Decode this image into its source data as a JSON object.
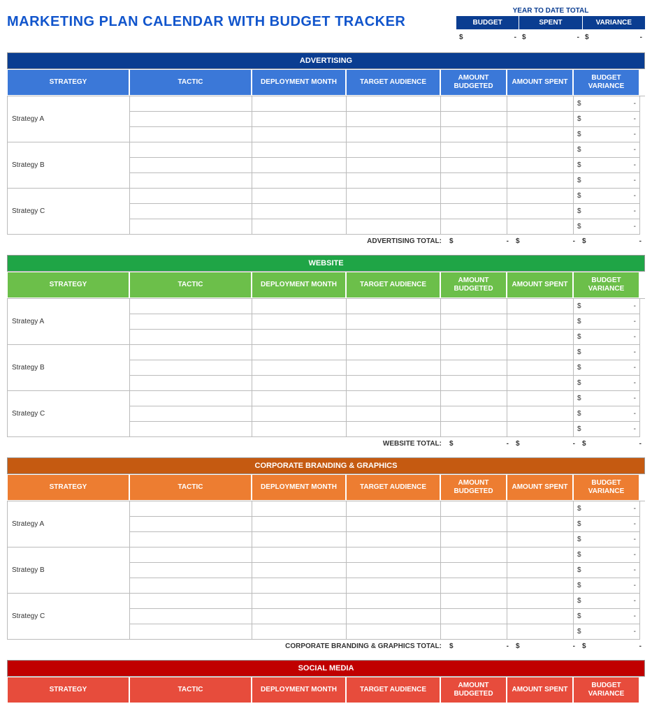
{
  "title": "MARKETING PLAN CALENDAR WITH BUDGET TRACKER",
  "title_color": "#1155cc",
  "ytd": {
    "title": "YEAR TO DATE TOTAL",
    "headers": [
      "BUDGET",
      "SPENT",
      "VARIANCE"
    ],
    "values": [
      {
        "currency": "$",
        "amount": "-"
      },
      {
        "currency": "$",
        "amount": "-"
      },
      {
        "currency": "$",
        "amount": "-"
      }
    ],
    "header_bg": "#0a3d91"
  },
  "columns": [
    "STRATEGY",
    "TACTIC",
    "DEPLOYMENT MONTH",
    "TARGET AUDIENCE",
    "AMOUNT BUDGETED",
    "AMOUNT SPENT",
    "BUDGET VARIANCE"
  ],
  "sections": [
    {
      "name": "ADVERTISING",
      "title_bg": "#0a3d91",
      "header_bg": "#3b78d8",
      "strategies": [
        "Strategy A",
        "Strategy B",
        "Strategy C"
      ],
      "rows_per_strategy": 3,
      "variance_cell": {
        "currency": "$",
        "amount": "-"
      },
      "total_label": "ADVERTISING TOTAL:",
      "totals": [
        {
          "currency": "$",
          "amount": "-"
        },
        {
          "currency": "$",
          "amount": "-"
        },
        {
          "currency": "$",
          "amount": "-"
        }
      ]
    },
    {
      "name": "WEBSITE",
      "title_bg": "#1fa546",
      "header_bg": "#6cbf4a",
      "strategies": [
        "Strategy A",
        "Strategy B",
        "Strategy C"
      ],
      "rows_per_strategy": 3,
      "variance_cell": {
        "currency": "$",
        "amount": "-"
      },
      "total_label": "WEBSITE TOTAL:",
      "totals": [
        {
          "currency": "$",
          "amount": "-"
        },
        {
          "currency": "$",
          "amount": "-"
        },
        {
          "currency": "$",
          "amount": "-"
        }
      ]
    },
    {
      "name": "CORPORATE BRANDING & GRAPHICS",
      "title_bg": "#c55a11",
      "header_bg": "#ed7d31",
      "strategies": [
        "Strategy A",
        "Strategy B",
        "Strategy C"
      ],
      "rows_per_strategy": 3,
      "variance_cell": {
        "currency": "$",
        "amount": "-"
      },
      "total_label": "CORPORATE BRANDING & GRAPHICS TOTAL:",
      "totals": [
        {
          "currency": "$",
          "amount": "-"
        },
        {
          "currency": "$",
          "amount": "-"
        },
        {
          "currency": "$",
          "amount": "-"
        }
      ]
    },
    {
      "name": "SOCIAL MEDIA",
      "title_bg": "#c00000",
      "header_bg": "#e74c3c",
      "strategies": [],
      "rows_per_strategy": 0,
      "variance_cell": {
        "currency": "$",
        "amount": "-"
      },
      "total_label": "",
      "totals": []
    }
  ]
}
